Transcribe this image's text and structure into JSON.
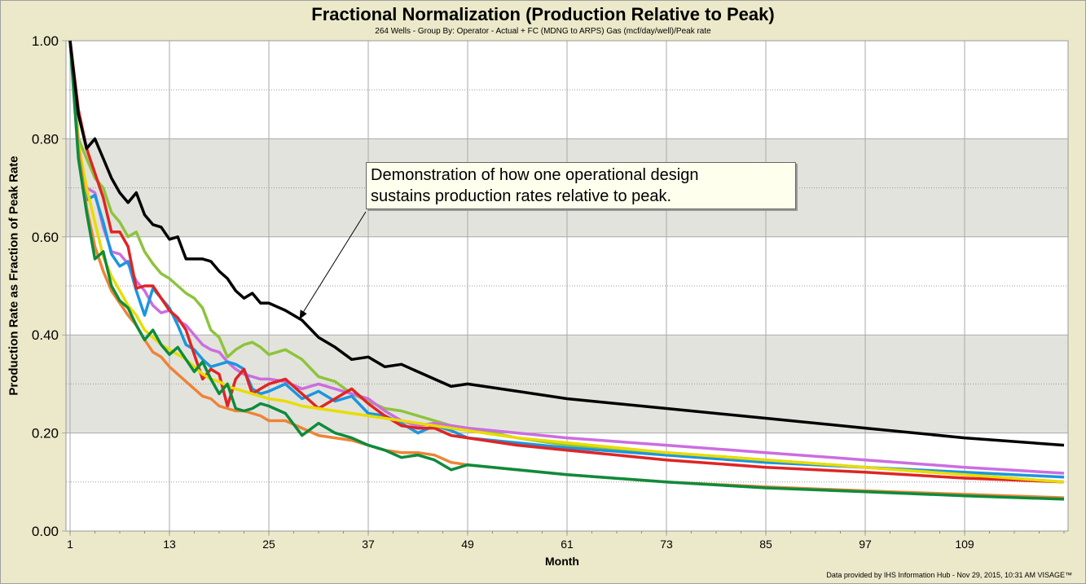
{
  "chart_data": {
    "type": "line",
    "title": "Fractional Normalization (Production Relative to Peak)",
    "subtitle": "264 Wells - Group By: Operator - Actual + FC (MDNG to ARPS)  Gas (mcf/day/well)/Peak rate",
    "xlabel": "Month",
    "ylabel": "Production Rate as Fraction of Peak Rate",
    "xlim": [
      1,
      121
    ],
    "ylim": [
      0,
      1
    ],
    "x_ticks": [
      1,
      13,
      25,
      37,
      49,
      61,
      73,
      85,
      97,
      109
    ],
    "y_ticks": [
      "0.00",
      "0.20",
      "0.40",
      "0.60",
      "0.80",
      "1.00"
    ],
    "grid": true,
    "shaded_bands": [
      [
        0.2,
        0.4
      ],
      [
        0.6,
        0.8
      ]
    ],
    "x": [
      1,
      2,
      3,
      4,
      5,
      6,
      7,
      8,
      9,
      10,
      11,
      12,
      13,
      14,
      15,
      16,
      17,
      18,
      19,
      20,
      21,
      22,
      23,
      24,
      25,
      27,
      29,
      31,
      33,
      35,
      37,
      39,
      41,
      43,
      45,
      47,
      49,
      55,
      61,
      73,
      85,
      97,
      109,
      121
    ],
    "series": [
      {
        "color": "#000000",
        "values": [
          1,
          0.85,
          0.78,
          0.8,
          0.76,
          0.72,
          0.69,
          0.67,
          0.69,
          0.645,
          0.625,
          0.62,
          0.595,
          0.6,
          0.555,
          0.555,
          0.555,
          0.55,
          0.53,
          0.515,
          0.49,
          0.475,
          0.485,
          0.465,
          0.465,
          0.45,
          0.43,
          0.395,
          0.375,
          0.35,
          0.355,
          0.335,
          0.34,
          0.325,
          0.31,
          0.295,
          0.3,
          0.285,
          0.27,
          0.25,
          0.23,
          0.21,
          0.19,
          0.175
        ]
      },
      {
        "color": "#8dc43c",
        "values": [
          1,
          0.8,
          0.76,
          0.72,
          0.7,
          0.65,
          0.63,
          0.6,
          0.61,
          0.57,
          0.545,
          0.525,
          0.515,
          0.5,
          0.485,
          0.475,
          0.455,
          0.41,
          0.395,
          0.355,
          0.37,
          0.38,
          0.385,
          0.375,
          0.36,
          0.37,
          0.35,
          0.315,
          0.305,
          0.28,
          0.265,
          0.25,
          0.245,
          0.235,
          0.225,
          0.215,
          0.21,
          0.19,
          0.175,
          0.16,
          0.145,
          0.13,
          0.115,
          0.1
        ]
      },
      {
        "color": "#cc6de0",
        "values": [
          1,
          0.78,
          0.7,
          0.69,
          0.62,
          0.57,
          0.565,
          0.545,
          0.51,
          0.49,
          0.46,
          0.445,
          0.45,
          0.43,
          0.42,
          0.4,
          0.38,
          0.37,
          0.365,
          0.345,
          0.33,
          0.32,
          0.315,
          0.31,
          0.31,
          0.305,
          0.29,
          0.3,
          0.29,
          0.28,
          0.27,
          0.245,
          0.225,
          0.215,
          0.22,
          0.215,
          0.21,
          0.2,
          0.19,
          0.175,
          0.16,
          0.145,
          0.13,
          0.118
        ]
      },
      {
        "color": "#1a96e0",
        "values": [
          1,
          0.78,
          0.675,
          0.685,
          0.63,
          0.565,
          0.54,
          0.55,
          0.49,
          0.44,
          0.495,
          0.475,
          0.455,
          0.42,
          0.38,
          0.37,
          0.35,
          0.335,
          0.34,
          0.345,
          0.34,
          0.33,
          0.29,
          0.28,
          0.285,
          0.3,
          0.27,
          0.285,
          0.265,
          0.275,
          0.24,
          0.235,
          0.22,
          0.2,
          0.215,
          0.205,
          0.19,
          0.18,
          0.17,
          0.155,
          0.14,
          0.13,
          0.12,
          0.11
        ]
      },
      {
        "color": "#e02424",
        "values": [
          1,
          0.86,
          0.78,
          0.73,
          0.68,
          0.61,
          0.61,
          0.58,
          0.495,
          0.5,
          0.5,
          0.475,
          0.45,
          0.435,
          0.41,
          0.36,
          0.31,
          0.33,
          0.32,
          0.255,
          0.31,
          0.33,
          0.28,
          0.29,
          0.3,
          0.31,
          0.28,
          0.25,
          0.27,
          0.29,
          0.26,
          0.235,
          0.215,
          0.21,
          0.21,
          0.195,
          0.19,
          0.175,
          0.165,
          0.145,
          0.13,
          0.12,
          0.108,
          0.1
        ]
      },
      {
        "color": "#e8dc00",
        "values": [
          1,
          0.79,
          0.7,
          0.63,
          0.56,
          0.52,
          0.49,
          0.46,
          0.44,
          0.41,
          0.395,
          0.38,
          0.37,
          0.36,
          0.35,
          0.335,
          0.32,
          0.31,
          0.305,
          0.295,
          0.29,
          0.285,
          0.28,
          0.275,
          0.27,
          0.265,
          0.255,
          0.25,
          0.245,
          0.24,
          0.235,
          0.23,
          0.225,
          0.22,
          0.215,
          0.21,
          0.205,
          0.19,
          0.18,
          0.16,
          0.145,
          0.13,
          0.115,
          0.1
        ]
      },
      {
        "color": "#ee8436",
        "values": [
          1,
          0.78,
          0.66,
          0.58,
          0.53,
          0.49,
          0.465,
          0.44,
          0.42,
          0.39,
          0.365,
          0.355,
          0.335,
          0.32,
          0.305,
          0.29,
          0.275,
          0.27,
          0.255,
          0.25,
          0.245,
          0.245,
          0.24,
          0.235,
          0.225,
          0.225,
          0.21,
          0.195,
          0.19,
          0.185,
          0.175,
          0.165,
          0.16,
          0.16,
          0.155,
          0.14,
          0.135,
          0.125,
          0.115,
          0.1,
          0.09,
          0.082,
          0.075,
          0.068
        ]
      },
      {
        "color": "#0c8c3c",
        "values": [
          1,
          0.76,
          0.65,
          0.555,
          0.57,
          0.5,
          0.47,
          0.455,
          0.42,
          0.39,
          0.41,
          0.38,
          0.36,
          0.375,
          0.35,
          0.325,
          0.345,
          0.31,
          0.28,
          0.3,
          0.25,
          0.245,
          0.25,
          0.26,
          0.255,
          0.24,
          0.195,
          0.22,
          0.2,
          0.19,
          0.175,
          0.165,
          0.15,
          0.155,
          0.145,
          0.125,
          0.135,
          0.125,
          0.115,
          0.1,
          0.088,
          0.08,
          0.072,
          0.065
        ]
      }
    ],
    "annotation": {
      "text": "Demonstration of how one operational design\nsustains production rates relative to peak.",
      "points_to": {
        "month": 29,
        "value": 0.44
      }
    }
  },
  "footer": {
    "credit": "Data provided by IHS Information Hub - Nov 29, 2015, 10:31 AM  VISAGE™"
  }
}
